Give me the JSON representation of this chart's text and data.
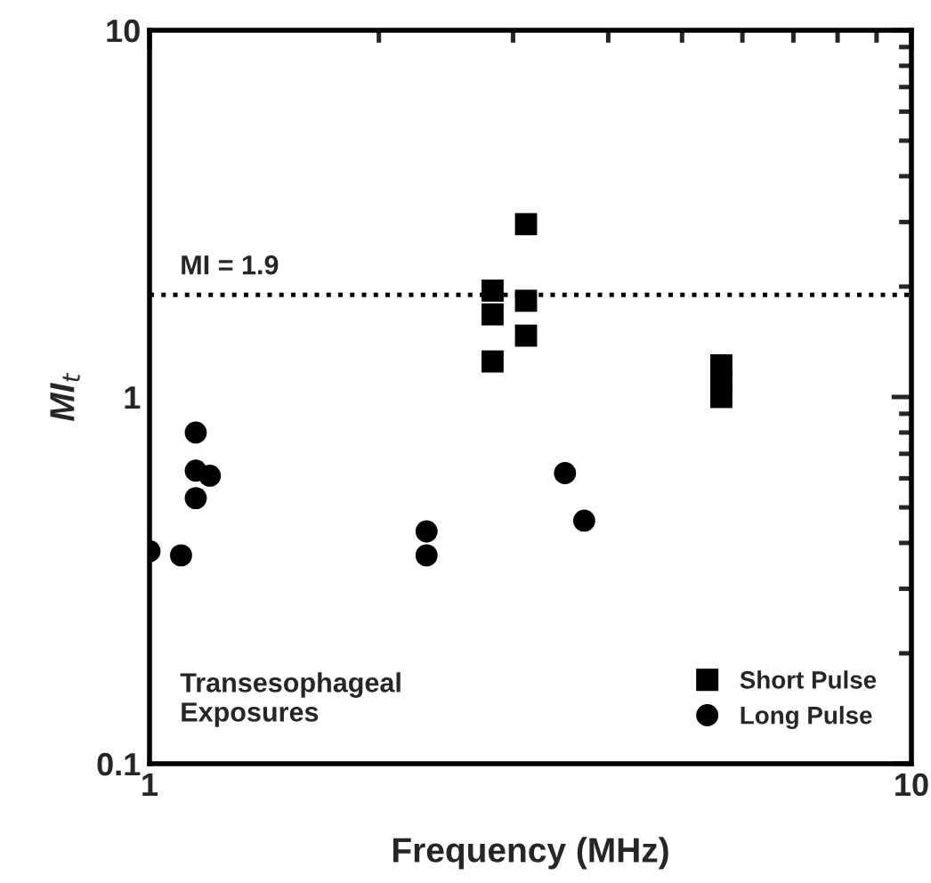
{
  "chart_data": {
    "type": "scatter",
    "xlabel": "Frequency (MHz)",
    "ylabel": "MI$_{t}$",
    "log": "xy",
    "xlim": [
      1,
      10
    ],
    "ylim": [
      0.1,
      10
    ],
    "xticks": [
      1,
      10
    ],
    "yticks": [
      0.1,
      1,
      10
    ],
    "grid": false,
    "legend": "bottom right",
    "series": [
      {
        "name": "Short Pulse",
        "color": "#000000",
        "marker": "square",
        "x": [
          2.82,
          2.82,
          2.82,
          3.12,
          3.12,
          3.12,
          5.63,
          5.63,
          5.63
        ],
        "values": [
          1.95,
          1.68,
          1.25,
          2.96,
          1.83,
          1.47,
          1.22,
          1.1,
          1.0
        ]
      },
      {
        "name": "Long Pulse",
        "color": "#000000",
        "marker": "circle",
        "x": [
          1.0,
          1.1,
          1.15,
          1.15,
          1.2,
          1.15,
          2.31,
          2.31,
          3.51,
          3.72
        ],
        "values": [
          0.38,
          0.37,
          0.8,
          0.63,
          0.61,
          0.53,
          0.43,
          0.37,
          0.62,
          0.46
        ]
      }
    ],
    "ref_lines": [
      {
        "axis": "y",
        "value": 1.9,
        "label": "MI = 1.9",
        "color": "#000000",
        "line_style": "dotted"
      }
    ],
    "annotations": [
      "Transesophageal\nExposures"
    ]
  }
}
